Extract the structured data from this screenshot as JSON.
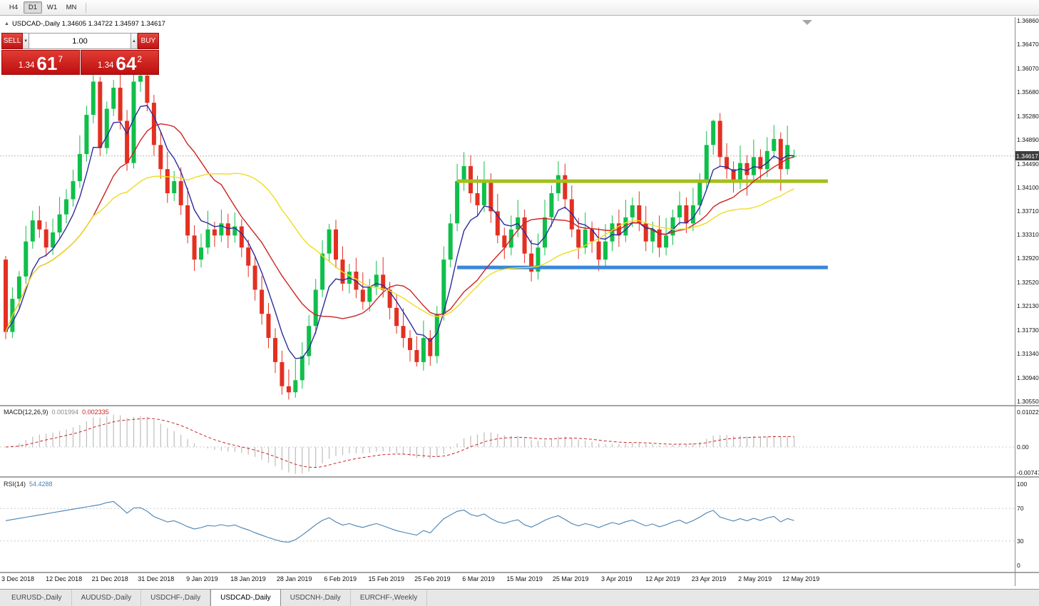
{
  "toolbar": {
    "timeframes": [
      "H4",
      "D1",
      "W1",
      "MN"
    ],
    "active": "D1"
  },
  "chart_header": {
    "collapse_icon": "▲",
    "text": "USDCAD-,Daily  1.34605 1.34722 1.34597 1.34617"
  },
  "trade_panel": {
    "sell_label": "SELL",
    "buy_label": "BUY",
    "volume": "1.00",
    "sell_price": {
      "prefix": "1.34",
      "big": "61",
      "sup": "7"
    },
    "buy_price": {
      "prefix": "1.34",
      "big": "64",
      "sup": "2"
    }
  },
  "price_axis": {
    "labels": [
      "1.36860",
      "1.36470",
      "1.36070",
      "1.35680",
      "1.35280",
      "1.34890",
      "1.34490",
      "1.34100",
      "1.33710",
      "1.33310",
      "1.32920",
      "1.32520",
      "1.32130",
      "1.31730",
      "1.31340",
      "1.30940",
      "1.30550"
    ],
    "current": "1.34617"
  },
  "panes": {
    "macd": {
      "name": "MACD(12,26,9)",
      "value_main": "0.001994",
      "value_signal": "0.002335",
      "axis": [
        "0.01022",
        "0.00",
        "-0.00747"
      ]
    },
    "rsi": {
      "name": "RSI(14)",
      "value": "54.4288",
      "axis": [
        "100",
        "70",
        "30",
        "0"
      ]
    }
  },
  "date_axis": [
    "3 Dec 2018",
    "12 Dec 2018",
    "21 Dec 2018",
    "31 Dec 2018",
    "9 Jan 2019",
    "18 Jan 2019",
    "28 Jan 2019",
    "6 Feb 2019",
    "15 Feb 2019",
    "25 Feb 2019",
    "6 Mar 2019",
    "15 Mar 2019",
    "25 Mar 2019",
    "3 Apr 2019",
    "12 Apr 2019",
    "23 Apr 2019",
    "2 May 2019",
    "12 May 2019"
  ],
  "tabs": {
    "items": [
      {
        "label": "EURUSD-,Daily",
        "active": false
      },
      {
        "label": "AUDUSD-,Daily",
        "active": false
      },
      {
        "label": "USDCHF-,Daily",
        "active": false
      },
      {
        "label": "USDCAD-,Daily",
        "active": true
      },
      {
        "label": "USDCNH-,Daily",
        "active": false
      },
      {
        "label": "EURCHF-,Weekly",
        "active": false
      }
    ]
  },
  "chart_data": {
    "type": "candlestick",
    "symbol": "USDCAD-",
    "timeframe": "Daily",
    "title": "USDCAD-,Daily",
    "ohlc_current": {
      "open": 1.34605,
      "high": 1.34722,
      "low": 1.34597,
      "close": 1.34617
    },
    "price_range": {
      "top": 1.3692,
      "bottom": 1.3049
    },
    "bid": {
      "price": 1.34617
    },
    "up_color": "#0fbf4a",
    "down_color": "#e33021",
    "ma": [
      {
        "name": "ma-fast",
        "type": "ema",
        "period": 6,
        "color": "#2b2b9e"
      },
      {
        "name": "ma-mid",
        "type": "sma",
        "period": 14,
        "color": "#cc2323"
      },
      {
        "name": "ma-slow",
        "type": "sma",
        "period": 28,
        "color": "#efdc1e"
      }
    ],
    "hlines": [
      {
        "name": "resistance-line",
        "price": 1.342,
        "color": "#a4bf1c",
        "width": 5,
        "from_index": 67,
        "to_index": 122
      },
      {
        "name": "support-line",
        "price": 1.3277,
        "color": "#3a87d8",
        "width": 5,
        "from_index": 67,
        "to_index": 122
      }
    ],
    "macd": {
      "fast": 12,
      "slow": 26,
      "signal": 9
    },
    "macd_range": [
      -0.0085,
      0.0118
    ],
    "macd_colors": {
      "hist": "#bdbdbd",
      "signal": "#cc2323"
    },
    "rsi": {
      "period": 14,
      "color": "#4682b4",
      "levels": [
        70,
        30
      ]
    },
    "rsi_range": [
      -8,
      108
    ],
    "candles": [
      [
        1.329,
        1.3296,
        1.3158,
        1.317
      ],
      [
        1.317,
        1.3244,
        1.316,
        1.3225
      ],
      [
        1.3225,
        1.3271,
        1.3206,
        1.3262
      ],
      [
        1.3262,
        1.3346,
        1.325,
        1.332
      ],
      [
        1.332,
        1.3371,
        1.3308,
        1.3355
      ],
      [
        1.3355,
        1.3379,
        1.3326,
        1.334
      ],
      [
        1.334,
        1.3353,
        1.3295,
        1.331
      ],
      [
        1.331,
        1.3358,
        1.3298,
        1.3335
      ],
      [
        1.3335,
        1.3394,
        1.3326,
        1.3365
      ],
      [
        1.3365,
        1.3407,
        1.335,
        1.339
      ],
      [
        1.339,
        1.3439,
        1.3378,
        1.342
      ],
      [
        1.342,
        1.3496,
        1.3409,
        1.3465
      ],
      [
        1.3465,
        1.3545,
        1.3452,
        1.353
      ],
      [
        1.353,
        1.3596,
        1.3516,
        1.3585
      ],
      [
        1.3585,
        1.3593,
        1.3462,
        1.3475
      ],
      [
        1.3475,
        1.3552,
        1.3465,
        1.354
      ],
      [
        1.354,
        1.3588,
        1.3528,
        1.3575
      ],
      [
        1.3575,
        1.3609,
        1.3506,
        1.352
      ],
      [
        1.352,
        1.3538,
        1.3437,
        1.345
      ],
      [
        1.345,
        1.3601,
        1.3441,
        1.3585
      ],
      [
        1.3585,
        1.3613,
        1.3568,
        1.3595
      ],
      [
        1.3595,
        1.3604,
        1.3536,
        1.355
      ],
      [
        1.355,
        1.3563,
        1.3462,
        1.348
      ],
      [
        1.348,
        1.3503,
        1.3424,
        1.344
      ],
      [
        1.344,
        1.3469,
        1.3384,
        1.34
      ],
      [
        1.34,
        1.3437,
        1.3387,
        1.342
      ],
      [
        1.342,
        1.3443,
        1.3364,
        1.338
      ],
      [
        1.338,
        1.3409,
        1.3317,
        1.333
      ],
      [
        1.333,
        1.3347,
        1.3271,
        1.329
      ],
      [
        1.329,
        1.3333,
        1.3277,
        1.331
      ],
      [
        1.331,
        1.3371,
        1.3299,
        1.334
      ],
      [
        1.334,
        1.3353,
        1.3311,
        1.333
      ],
      [
        1.333,
        1.3373,
        1.3319,
        1.335
      ],
      [
        1.335,
        1.3366,
        1.3309,
        1.333
      ],
      [
        1.333,
        1.3368,
        1.3318,
        1.3345
      ],
      [
        1.3345,
        1.3357,
        1.3294,
        1.331
      ],
      [
        1.331,
        1.3323,
        1.3261,
        1.328
      ],
      [
        1.328,
        1.3294,
        1.3222,
        1.324
      ],
      [
        1.324,
        1.3263,
        1.3182,
        1.32
      ],
      [
        1.32,
        1.3218,
        1.3143,
        1.316
      ],
      [
        1.316,
        1.3176,
        1.3102,
        1.312
      ],
      [
        1.312,
        1.3139,
        1.3066,
        1.308
      ],
      [
        1.308,
        1.3108,
        1.3058,
        1.307
      ],
      [
        1.307,
        1.3124,
        1.3061,
        1.309
      ],
      [
        1.309,
        1.3153,
        1.3076,
        1.313
      ],
      [
        1.313,
        1.3198,
        1.3115,
        1.318
      ],
      [
        1.318,
        1.3258,
        1.3166,
        1.324
      ],
      [
        1.324,
        1.3322,
        1.3228,
        1.33
      ],
      [
        1.33,
        1.3349,
        1.3286,
        1.334
      ],
      [
        1.334,
        1.3356,
        1.3276,
        1.329
      ],
      [
        1.329,
        1.3312,
        1.3238,
        1.325
      ],
      [
        1.325,
        1.3283,
        1.3234,
        1.327
      ],
      [
        1.327,
        1.3293,
        1.3226,
        1.324
      ],
      [
        1.324,
        1.3269,
        1.3207,
        1.322
      ],
      [
        1.322,
        1.3258,
        1.3204,
        1.3245
      ],
      [
        1.3245,
        1.3288,
        1.3231,
        1.3265
      ],
      [
        1.3265,
        1.3294,
        1.3227,
        1.324
      ],
      [
        1.324,
        1.3253,
        1.3191,
        1.321
      ],
      [
        1.321,
        1.3233,
        1.3167,
        1.318
      ],
      [
        1.318,
        1.3209,
        1.3144,
        1.316
      ],
      [
        1.316,
        1.3173,
        1.3121,
        1.314
      ],
      [
        1.314,
        1.3163,
        1.3113,
        1.312
      ],
      [
        1.312,
        1.3189,
        1.3106,
        1.316
      ],
      [
        1.316,
        1.3173,
        1.3114,
        1.313
      ],
      [
        1.313,
        1.3213,
        1.3118,
        1.32
      ],
      [
        1.32,
        1.3312,
        1.3189,
        1.329
      ],
      [
        1.329,
        1.3366,
        1.3277,
        1.335
      ],
      [
        1.335,
        1.3449,
        1.3337,
        1.342
      ],
      [
        1.342,
        1.3468,
        1.3404,
        1.3445
      ],
      [
        1.3445,
        1.3463,
        1.3384,
        1.34
      ],
      [
        1.34,
        1.3429,
        1.3361,
        1.338
      ],
      [
        1.338,
        1.3453,
        1.3369,
        1.342
      ],
      [
        1.342,
        1.3433,
        1.3351,
        1.337
      ],
      [
        1.337,
        1.3399,
        1.3317,
        1.333
      ],
      [
        1.333,
        1.3343,
        1.3291,
        1.331
      ],
      [
        1.331,
        1.3363,
        1.3297,
        1.334
      ],
      [
        1.334,
        1.3389,
        1.3327,
        1.336
      ],
      [
        1.336,
        1.3373,
        1.3284,
        1.33
      ],
      [
        1.33,
        1.3323,
        1.3254,
        1.327
      ],
      [
        1.327,
        1.3333,
        1.3257,
        1.331
      ],
      [
        1.331,
        1.3389,
        1.3297,
        1.336
      ],
      [
        1.336,
        1.3413,
        1.3344,
        1.34
      ],
      [
        1.34,
        1.3453,
        1.3387,
        1.343
      ],
      [
        1.343,
        1.3449,
        1.3374,
        1.339
      ],
      [
        1.339,
        1.3413,
        1.3327,
        1.334
      ],
      [
        1.334,
        1.3359,
        1.3291,
        1.331
      ],
      [
        1.331,
        1.3368,
        1.3299,
        1.334
      ],
      [
        1.334,
        1.3353,
        1.3301,
        1.332
      ],
      [
        1.332,
        1.3343,
        1.3271,
        1.329
      ],
      [
        1.329,
        1.3349,
        1.3277,
        1.332
      ],
      [
        1.332,
        1.3363,
        1.3304,
        1.335
      ],
      [
        1.335,
        1.3373,
        1.3311,
        1.333
      ],
      [
        1.333,
        1.3389,
        1.3319,
        1.336
      ],
      [
        1.336,
        1.3393,
        1.3344,
        1.338
      ],
      [
        1.338,
        1.3403,
        1.3337,
        1.335
      ],
      [
        1.335,
        1.3379,
        1.3304,
        1.332
      ],
      [
        1.332,
        1.3353,
        1.3301,
        1.334
      ],
      [
        1.334,
        1.3363,
        1.3294,
        1.331
      ],
      [
        1.331,
        1.3359,
        1.3297,
        1.333
      ],
      [
        1.333,
        1.3373,
        1.3314,
        1.336
      ],
      [
        1.336,
        1.3403,
        1.3347,
        1.338
      ],
      [
        1.338,
        1.3393,
        1.3334,
        1.335
      ],
      [
        1.335,
        1.3409,
        1.3337,
        1.338
      ],
      [
        1.338,
        1.3433,
        1.3364,
        1.342
      ],
      [
        1.342,
        1.3503,
        1.3407,
        1.348
      ],
      [
        1.348,
        1.3522,
        1.3464,
        1.352
      ],
      [
        1.352,
        1.3533,
        1.3444,
        1.346
      ],
      [
        1.346,
        1.3483,
        1.3424,
        1.344
      ],
      [
        1.344,
        1.3453,
        1.3401,
        1.342
      ],
      [
        1.342,
        1.3479,
        1.3407,
        1.345
      ],
      [
        1.345,
        1.3463,
        1.3396,
        1.343
      ],
      [
        1.343,
        1.3489,
        1.3417,
        1.346
      ],
      [
        1.346,
        1.3473,
        1.3421,
        1.344
      ],
      [
        1.344,
        1.3493,
        1.3427,
        1.347
      ],
      [
        1.347,
        1.3513,
        1.3457,
        1.349
      ],
      [
        1.349,
        1.3501,
        1.3404,
        1.344
      ],
      [
        1.344,
        1.3512,
        1.3431,
        1.348
      ],
      [
        1.34605,
        1.34722,
        1.34597,
        1.34617
      ]
    ]
  }
}
